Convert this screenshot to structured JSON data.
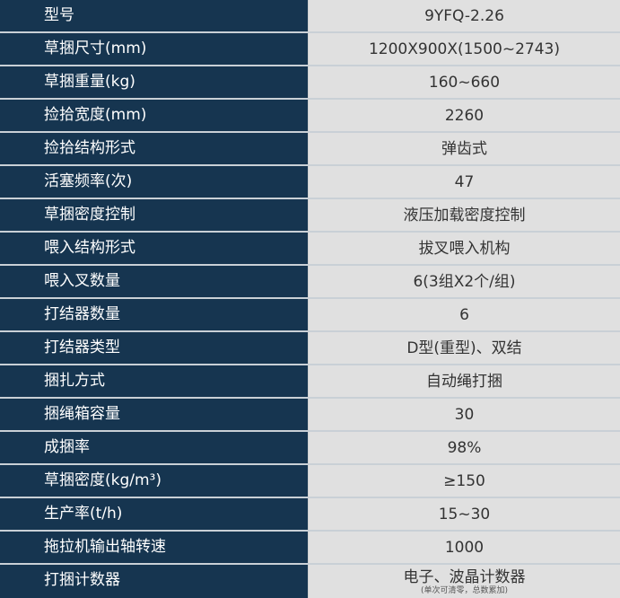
{
  "rows": [
    {
      "label": "型号",
      "value": "9YFQ-2.26"
    },
    {
      "label": "草捆尺寸(mm)",
      "value": "1200X900X(1500~2743)"
    },
    {
      "label": "草捆重量(kg)",
      "value": "160~660"
    },
    {
      "label": "捡拾宽度(mm)",
      "value": "2260"
    },
    {
      "label": "捡拾结构形式",
      "value": "弹齿式"
    },
    {
      "label": "活塞频率(次)",
      "value": "47"
    },
    {
      "label": "草捆密度控制",
      "value": "液压加载密度控制"
    },
    {
      "label": "喂入结构形式",
      "value": "拔叉喂入机构"
    },
    {
      "label": "喂入叉数量",
      "value": "6(3组X2个/组)"
    },
    {
      "label": "打结器数量",
      "value": "6"
    },
    {
      "label": "打结器类型",
      "value": "D型(重型)、双结"
    },
    {
      "label": "捆扎方式",
      "value": "自动绳打捆"
    },
    {
      "label": "捆绳箱容量",
      "value": "30"
    },
    {
      "label": "成捆率",
      "value": "98%"
    },
    {
      "label": "草捆密度(kg/m³)",
      "value": "≥150"
    },
    {
      "label": "生产率(t/h)",
      "value": "15~30"
    },
    {
      "label": "拖拉机输出轴转速",
      "value": "1000"
    },
    {
      "label": "打捆计数器",
      "value": "电子、波晶计数器",
      "note": "(单次可清零，总数累加)"
    }
  ],
  "colors": {
    "label_bg": "#163550",
    "value_bg": "#e0e0e0"
  }
}
